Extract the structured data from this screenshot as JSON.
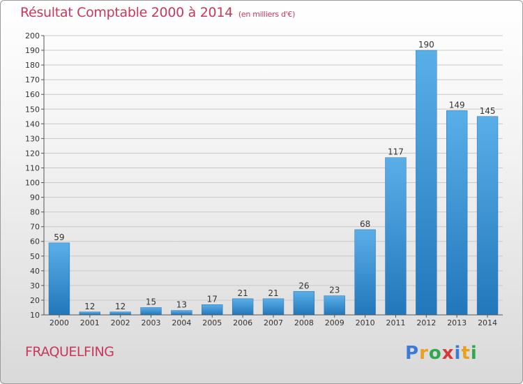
{
  "title": "Résultat Comptable 2000 à 2014",
  "subtitle": "(en milliers d'€)",
  "location": "FRAQUELFING",
  "logo": {
    "letters": [
      "P",
      "r",
      "o",
      "x",
      "i",
      "t",
      "i"
    ],
    "colors": [
      "#3a7bd5",
      "#e8a020",
      "#2fa84f",
      "#d43a3a",
      "#3a7bd5",
      "#e8a020",
      "#2fa84f"
    ]
  },
  "chart_data": {
    "type": "bar",
    "categories": [
      "2000",
      "2001",
      "2002",
      "2003",
      "2004",
      "2005",
      "2006",
      "2007",
      "2008",
      "2009",
      "2010",
      "2011",
      "2012",
      "2013",
      "2014"
    ],
    "values": [
      59,
      12,
      12,
      15,
      13,
      17,
      21,
      21,
      26,
      23,
      68,
      117,
      190,
      149,
      145
    ],
    "ylim": [
      10,
      200
    ],
    "yticks": [
      10,
      20,
      30,
      40,
      50,
      60,
      70,
      80,
      90,
      100,
      110,
      120,
      130,
      140,
      150,
      160,
      170,
      180,
      190,
      200
    ],
    "grid": "horizontal",
    "bar_color": "#3a95d8",
    "data_labels": true
  }
}
